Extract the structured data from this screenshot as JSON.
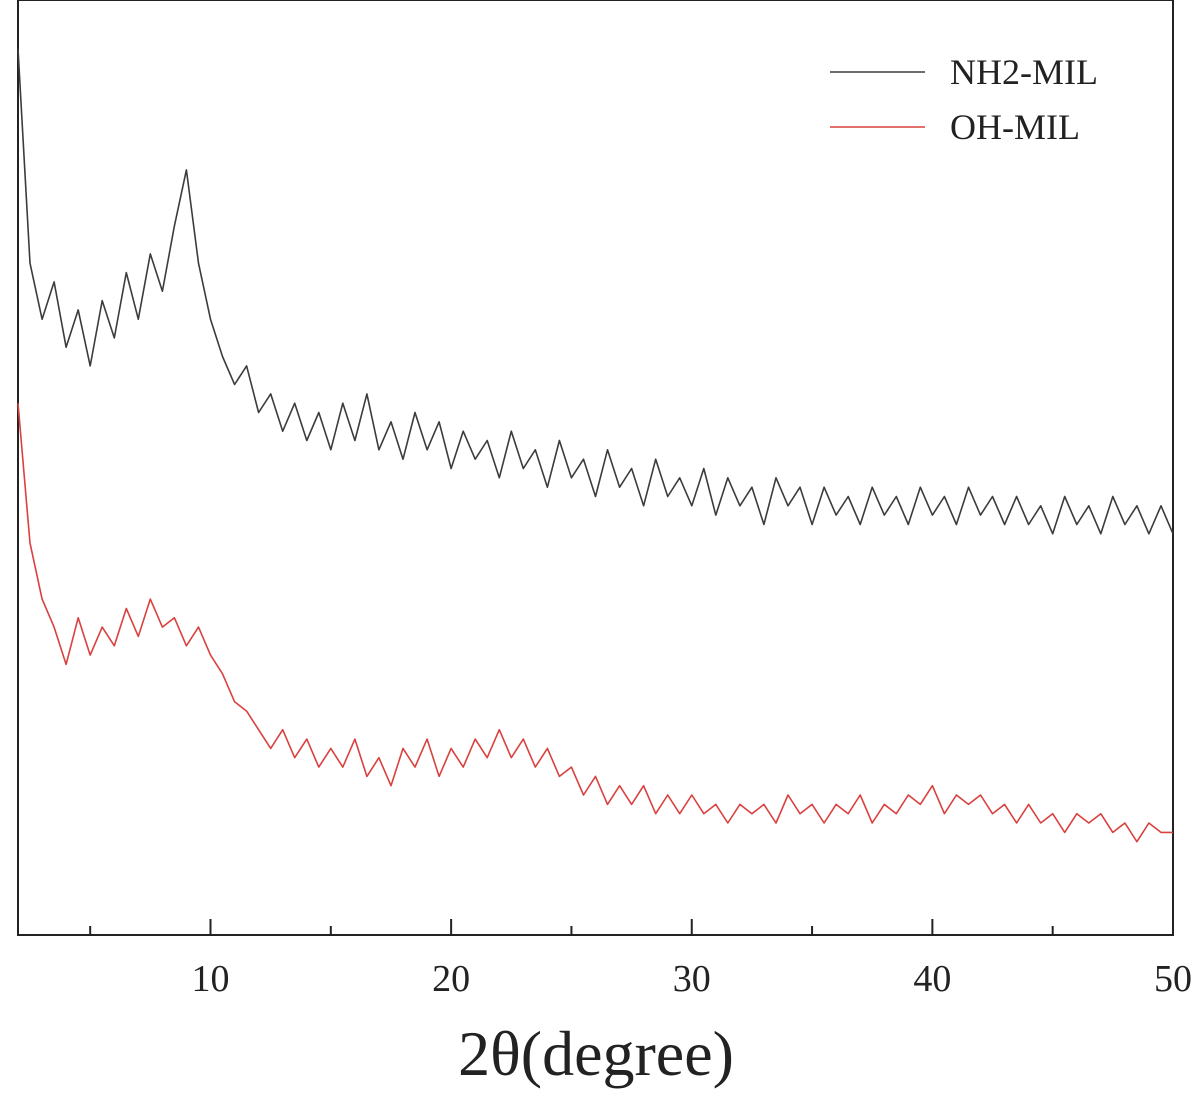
{
  "chart_data": {
    "type": "line",
    "x_label": "2θ(degree)",
    "x": [
      2,
      2.5,
      3,
      3.5,
      4,
      4.5,
      5,
      5.5,
      6,
      6.5,
      7,
      7.5,
      8,
      8.5,
      9,
      9.5,
      10,
      10.5,
      11,
      11.5,
      12,
      12.5,
      13,
      13.5,
      14,
      14.5,
      15,
      15.5,
      16,
      16.5,
      17,
      17.5,
      18,
      18.5,
      19,
      19.5,
      20,
      20.5,
      21,
      21.5,
      22,
      22.5,
      23,
      23.5,
      24,
      24.5,
      25,
      25.5,
      26,
      26.5,
      27,
      27.5,
      28,
      28.5,
      29,
      29.5,
      30,
      30.5,
      31,
      31.5,
      32,
      32.5,
      33,
      33.5,
      34,
      34.5,
      35,
      35.5,
      36,
      36.5,
      37,
      37.5,
      38,
      38.5,
      39,
      39.5,
      40,
      40.5,
      41,
      41.5,
      42,
      42.5,
      43,
      43.5,
      44,
      44.5,
      45,
      45.5,
      46,
      46.5,
      47,
      47.5,
      48,
      48.5,
      49,
      49.5,
      50
    ],
    "series": [
      {
        "name": "NH2-MIL",
        "color": "#3c3c3c",
        "values": [
          95,
          72,
          66,
          70,
          63,
          67,
          61,
          68,
          64,
          71,
          66,
          73,
          69,
          76,
          82,
          72,
          66,
          62,
          59,
          61,
          56,
          58,
          54,
          57,
          53,
          56,
          52,
          57,
          53,
          58,
          52,
          55,
          51,
          56,
          52,
          55,
          50,
          54,
          51,
          53,
          49,
          54,
          50,
          52,
          48,
          53,
          49,
          51,
          47,
          52,
          48,
          50,
          46,
          51,
          47,
          49,
          46,
          50,
          45,
          49,
          46,
          48,
          44,
          49,
          46,
          48,
          44,
          48,
          45,
          47,
          44,
          48,
          45,
          47,
          44,
          48,
          45,
          47,
          44,
          48,
          45,
          47,
          44,
          47,
          44,
          46,
          43,
          47,
          44,
          46,
          43,
          47,
          44,
          46,
          43,
          46,
          43
        ]
      },
      {
        "name": "OH-MIL",
        "color": "#d9413f",
        "values": [
          57,
          42,
          36,
          33,
          29,
          34,
          30,
          33,
          31,
          35,
          32,
          36,
          33,
          34,
          31,
          33,
          30,
          28,
          25,
          24,
          22,
          20,
          22,
          19,
          21,
          18,
          20,
          18,
          21,
          17,
          19,
          16,
          20,
          18,
          21,
          17,
          20,
          18,
          21,
          19,
          22,
          19,
          21,
          18,
          20,
          17,
          18,
          15,
          17,
          14,
          16,
          14,
          16,
          13,
          15,
          13,
          15,
          13,
          14,
          12,
          14,
          13,
          14,
          12,
          15,
          13,
          14,
          12,
          14,
          13,
          15,
          12,
          14,
          13,
          15,
          14,
          16,
          13,
          15,
          14,
          15,
          13,
          14,
          12,
          14,
          12,
          13,
          11,
          13,
          12,
          13,
          11,
          12,
          10,
          12,
          11,
          11
        ]
      }
    ],
    "xlim": [
      2,
      50
    ],
    "xticks": [
      10,
      20,
      30,
      40,
      50
    ],
    "xminorticks": [
      5,
      15,
      25,
      35,
      45
    ],
    "ylim": [
      0,
      100
    ],
    "legend": "upper right"
  }
}
